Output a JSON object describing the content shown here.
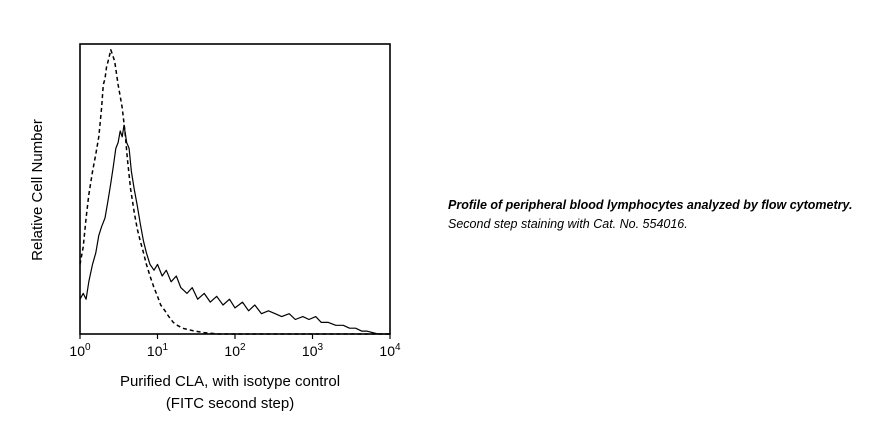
{
  "chart_data": {
    "type": "line",
    "title": "",
    "xlabel": "Purified CLA, with isotype control",
    "xlabel_line2": "(FITC second step)",
    "ylabel": "Relative Cell Number",
    "xscale": "log",
    "xlim": [
      1,
      10000
    ],
    "ylim": [
      0,
      100
    ],
    "grid": false,
    "xticks": [
      {
        "base": "10",
        "exp": "0",
        "value": 1
      },
      {
        "base": "10",
        "exp": "1",
        "value": 10
      },
      {
        "base": "10",
        "exp": "2",
        "value": 100
      },
      {
        "base": "10",
        "exp": "3",
        "value": 1000
      },
      {
        "base": "10",
        "exp": "4",
        "value": 10000
      }
    ],
    "series": [
      {
        "style": "solid",
        "color": "#000000",
        "x": [
          1.0,
          1.1,
          1.2,
          1.3,
          1.45,
          1.6,
          1.75,
          1.9,
          2.1,
          2.3,
          2.5,
          2.7,
          2.9,
          3.1,
          3.3,
          3.5,
          3.7,
          4.0,
          4.3,
          4.6,
          5.0,
          5.5,
          6.0,
          6.6,
          7.2,
          8.0,
          9.0,
          10.0,
          11.5,
          13.0,
          15.0,
          17.5,
          20,
          24,
          28,
          33,
          40,
          48,
          58,
          70,
          85,
          100,
          125,
          150,
          180,
          220,
          270,
          330,
          400,
          500,
          600,
          750,
          900,
          1100,
          1300,
          1600,
          2000,
          2500,
          3000,
          3600,
          4300,
          5000,
          7000,
          10000
        ],
        "y": [
          12,
          14,
          12,
          18,
          24,
          28,
          34,
          37,
          40,
          46,
          52,
          58,
          64,
          66,
          70,
          68,
          72,
          66,
          64,
          56,
          50,
          44,
          38,
          32,
          28,
          24,
          22,
          24,
          20,
          22,
          18,
          20,
          16,
          14,
          16,
          12,
          14,
          11,
          13,
          10,
          12,
          9,
          11,
          8,
          10,
          7,
          8,
          7,
          6,
          7,
          5,
          6,
          5,
          6,
          4,
          4,
          3,
          3,
          2,
          2,
          1,
          1,
          0,
          0
        ]
      },
      {
        "style": "dashed",
        "color": "#000000",
        "x": [
          1.0,
          1.1,
          1.2,
          1.3,
          1.45,
          1.6,
          1.75,
          1.9,
          2.0,
          2.1,
          2.2,
          2.35,
          2.5,
          2.65,
          2.8,
          2.95,
          3.1,
          3.3,
          3.5,
          3.8,
          4.1,
          4.5,
          5.0,
          5.5,
          6.0,
          6.6,
          7.2,
          8.0,
          9.0,
          10.0,
          11.0,
          12.5,
          14.0,
          16.0,
          18.0,
          21,
          25,
          30,
          40,
          60,
          100,
          200,
          500,
          1000,
          10000
        ],
        "y": [
          24,
          30,
          40,
          48,
          56,
          62,
          68,
          78,
          86,
          88,
          92,
          95,
          98,
          96,
          94,
          90,
          86,
          82,
          78,
          70,
          60,
          50,
          42,
          36,
          32,
          28,
          24,
          20,
          16,
          13,
          10,
          8,
          6,
          4,
          3,
          2,
          1.5,
          1,
          0.5,
          0,
          0,
          0,
          0,
          0,
          0
        ]
      }
    ]
  },
  "caption": {
    "bold": "Profile of peripheral blood lymphocytes analyzed by flow cytometry.",
    "normal": " Second step staining with Cat. No. 554016."
  }
}
